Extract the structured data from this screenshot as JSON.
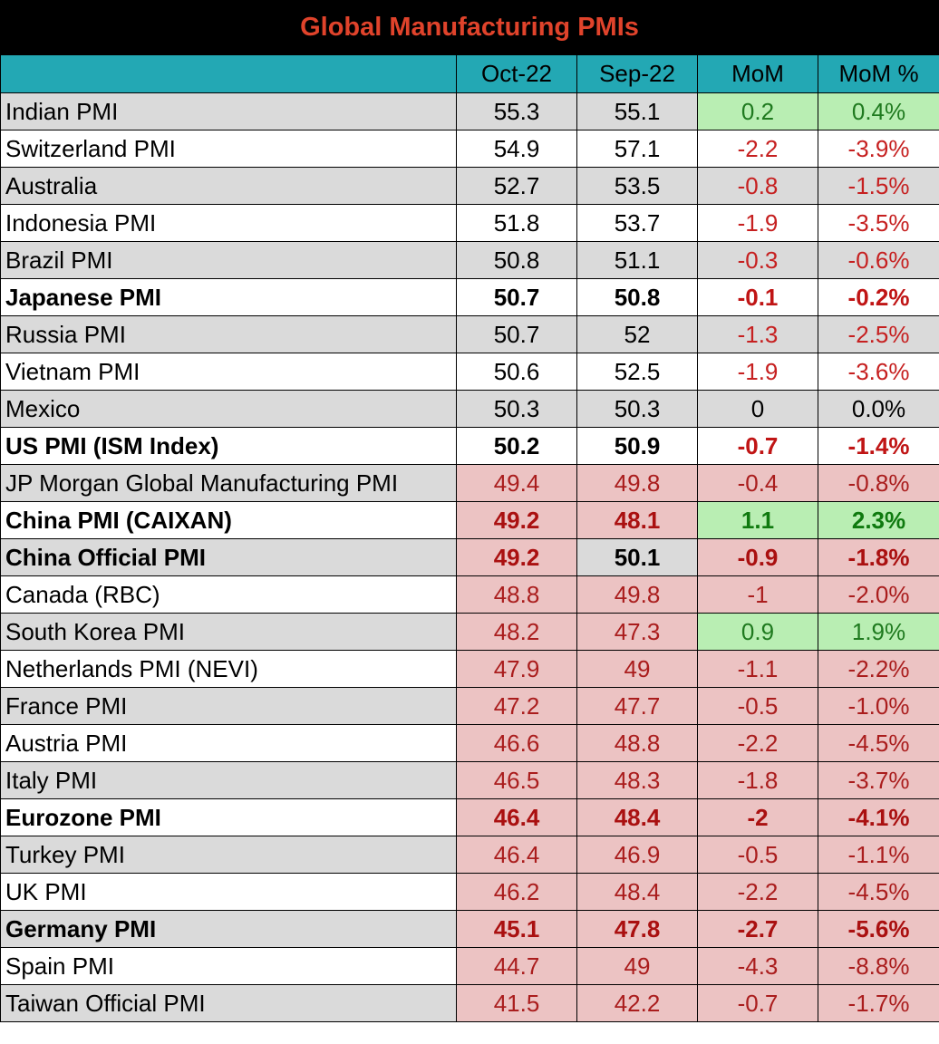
{
  "title": "Global Manufacturing PMIs",
  "columns": [
    "",
    "Oct-22",
    "Sep-22",
    "MoM",
    "MoM %"
  ],
  "colors": {
    "title_text": "#e0432b",
    "title_bg": "#000000",
    "header_bg": "#23a8b4",
    "grey_row": "#dadada",
    "red_cell_bg": "#ecc3c3",
    "red_text": "#aa1d1d",
    "green_cell_bg": "#b9eeb3",
    "green_text": "#1f7a1f"
  },
  "rows": [
    {
      "name": "Indian PMI",
      "oct": "55.3",
      "sep": "55.1",
      "mom": "0.2",
      "mom_pct": "0.4%",
      "bold": false
    },
    {
      "name": "Switzerland PMI",
      "oct": "54.9",
      "sep": "57.1",
      "mom": "-2.2",
      "mom_pct": "-3.9%",
      "bold": false
    },
    {
      "name": "Australia",
      "oct": "52.7",
      "sep": "53.5",
      "mom": "-0.8",
      "mom_pct": "-1.5%",
      "bold": false
    },
    {
      "name": "Indonesia PMI",
      "oct": "51.8",
      "sep": "53.7",
      "mom": "-1.9",
      "mom_pct": "-3.5%",
      "bold": false
    },
    {
      "name": "Brazil PMI",
      "oct": "50.8",
      "sep": "51.1",
      "mom": "-0.3",
      "mom_pct": "-0.6%",
      "bold": false
    },
    {
      "name": "Japanese PMI",
      "oct": "50.7",
      "sep": "50.8",
      "mom": "-0.1",
      "mom_pct": "-0.2%",
      "bold": true
    },
    {
      "name": "Russia PMI",
      "oct": "50.7",
      "sep": "52",
      "mom": "-1.3",
      "mom_pct": "-2.5%",
      "bold": false
    },
    {
      "name": "Vietnam PMI",
      "oct": "50.6",
      "sep": "52.5",
      "mom": "-1.9",
      "mom_pct": "-3.6%",
      "bold": false
    },
    {
      "name": "Mexico",
      "oct": "50.3",
      "sep": "50.3",
      "mom": "0",
      "mom_pct": "0.0%",
      "bold": false
    },
    {
      "name": "US PMI (ISM Index)",
      "oct": "50.2",
      "sep": "50.9",
      "mom": "-0.7",
      "mom_pct": "-1.4%",
      "bold": true
    },
    {
      "name": "JP Morgan Global Manufacturing PMI",
      "oct": "49.4",
      "sep": "49.8",
      "mom": "-0.4",
      "mom_pct": "-0.8%",
      "bold": false
    },
    {
      "name": "China PMI (CAIXAN)",
      "oct": "49.2",
      "sep": "48.1",
      "mom": "1.1",
      "mom_pct": "2.3%",
      "bold": true
    },
    {
      "name": "China Official PMI",
      "oct": "49.2",
      "sep": "50.1",
      "mom": "-0.9",
      "mom_pct": "-1.8%",
      "bold": true
    },
    {
      "name": "Canada (RBC)",
      "oct": "48.8",
      "sep": "49.8",
      "mom": "-1",
      "mom_pct": "-2.0%",
      "bold": false
    },
    {
      "name": "South Korea PMI",
      "oct": "48.2",
      "sep": "47.3",
      "mom": "0.9",
      "mom_pct": "1.9%",
      "bold": false
    },
    {
      "name": "Netherlands PMI (NEVI)",
      "oct": "47.9",
      "sep": "49",
      "mom": "-1.1",
      "mom_pct": "-2.2%",
      "bold": false
    },
    {
      "name": "France PMI",
      "oct": "47.2",
      "sep": "47.7",
      "mom": "-0.5",
      "mom_pct": "-1.0%",
      "bold": false
    },
    {
      "name": "Austria PMI",
      "oct": "46.6",
      "sep": "48.8",
      "mom": "-2.2",
      "mom_pct": "-4.5%",
      "bold": false
    },
    {
      "name": "Italy PMI",
      "oct": "46.5",
      "sep": "48.3",
      "mom": "-1.8",
      "mom_pct": "-3.7%",
      "bold": false
    },
    {
      "name": "Eurozone PMI",
      "oct": "46.4",
      "sep": "48.4",
      "mom": "-2",
      "mom_pct": "-4.1%",
      "bold": true
    },
    {
      "name": "Turkey PMI",
      "oct": "46.4",
      "sep": "46.9",
      "mom": "-0.5",
      "mom_pct": "-1.1%",
      "bold": false
    },
    {
      "name": "UK PMI",
      "oct": "46.2",
      "sep": "48.4",
      "mom": "-2.2",
      "mom_pct": "-4.5%",
      "bold": false
    },
    {
      "name": "Germany PMI",
      "oct": "45.1",
      "sep": "47.8",
      "mom": "-2.7",
      "mom_pct": "-5.6%",
      "bold": true
    },
    {
      "name": "Spain PMI",
      "oct": "44.7",
      "sep": "49",
      "mom": "-4.3",
      "mom_pct": "-8.8%",
      "bold": false
    },
    {
      "name": "Taiwan Official PMI",
      "oct": "41.5",
      "sep": "42.2",
      "mom": "-0.7",
      "mom_pct": "-1.7%",
      "bold": false
    }
  ]
}
